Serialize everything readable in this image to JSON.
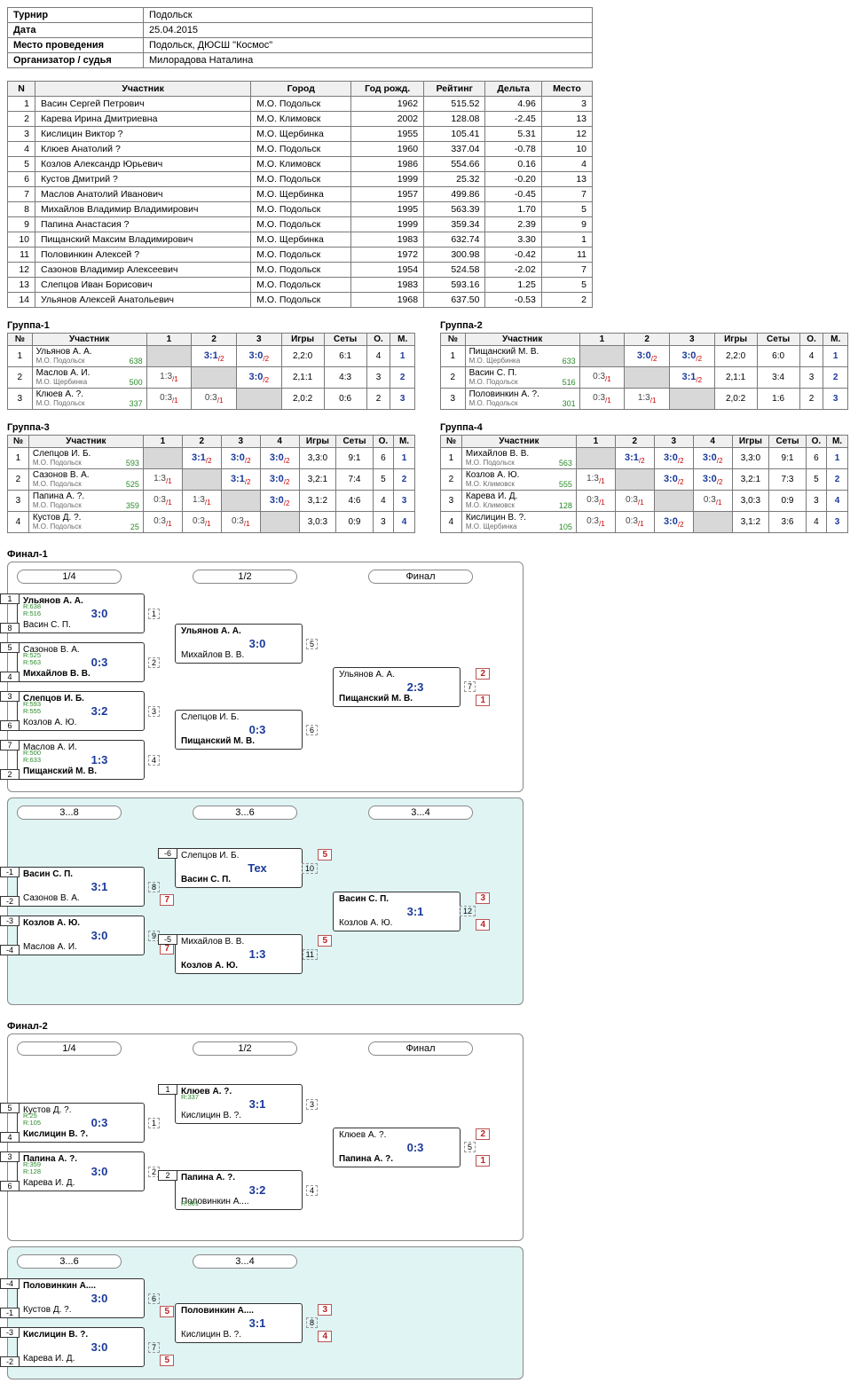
{
  "info": {
    "rows": [
      {
        "k": "Турнир",
        "v": "Подольск"
      },
      {
        "k": "Дата",
        "v": "25.04.2015"
      },
      {
        "k": "Место проведения",
        "v": "Подольск, ДЮСШ \"Космос\""
      },
      {
        "k": "Организатор / судья",
        "v": "Милорадова Наталина"
      }
    ]
  },
  "participants": {
    "headers": [
      "N",
      "Участник",
      "Город",
      "Год рожд.",
      "Рейтинг",
      "Дельта",
      "Место"
    ],
    "rows": [
      [
        1,
        "Васин Сергей Петрович",
        "М.О. Подольск",
        "1962",
        "515.52",
        "4.96",
        "3"
      ],
      [
        2,
        "Карева Ирина Дмитриевна",
        "М.О. Климовск",
        "2002",
        "128.08",
        "-2.45",
        "13"
      ],
      [
        3,
        "Кислицин Виктор ?",
        "М.О. Щербинка",
        "1955",
        "105.41",
        "5.31",
        "12"
      ],
      [
        4,
        "Клюев Анатолий ?",
        "М.О. Подольск",
        "1960",
        "337.04",
        "-0.78",
        "10"
      ],
      [
        5,
        "Козлов Александр Юрьевич",
        "М.О. Климовск",
        "1986",
        "554.66",
        "0.16",
        "4"
      ],
      [
        6,
        "Кустов Дмитрий ?",
        "М.О. Подольск",
        "1999",
        "25.32",
        "-0.20",
        "13"
      ],
      [
        7,
        "Маслов Анатолий Иванович",
        "М.О. Щербинка",
        "1957",
        "499.86",
        "-0.45",
        "7"
      ],
      [
        8,
        "Михайлов Владимир Владимирович",
        "М.О. Подольск",
        "1995",
        "563.39",
        "1.70",
        "5"
      ],
      [
        9,
        "Папина Анастасия ?",
        "М.О. Подольск",
        "1999",
        "359.34",
        "2.39",
        "9"
      ],
      [
        10,
        "Пищанский Максим Владимирович",
        "М.О. Щербинка",
        "1983",
        "632.74",
        "3.30",
        "1"
      ],
      [
        11,
        "Половинкин Алексей ?",
        "М.О. Подольск",
        "1972",
        "300.98",
        "-0.42",
        "11"
      ],
      [
        12,
        "Сазонов Владимир Алексеевич",
        "М.О. Подольск",
        "1954",
        "524.58",
        "-2.02",
        "7"
      ],
      [
        13,
        "Слепцов Иван Борисович",
        "М.О. Подольск",
        "1983",
        "593.16",
        "1.25",
        "5"
      ],
      [
        14,
        "Ульянов Алексей Анатольевич",
        "М.О. Подольск",
        "1968",
        "637.50",
        "-0.53",
        "2"
      ]
    ]
  },
  "groups": [
    {
      "title": "Группа-1",
      "cols": 3,
      "headers": [
        "№",
        "Участник",
        "1",
        "2",
        "3",
        "Игры",
        "Сеты",
        "О.",
        "М."
      ],
      "rows": [
        {
          "n": 1,
          "name": "Ульянов А. А.",
          "club": "М.О. Подольск",
          "rat": "638",
          "cells": [
            "D",
            "W3:1|2",
            "W3:0|2"
          ],
          "games": "2,2:0",
          "sets": "6:1",
          "pts": "4",
          "place": "1"
        },
        {
          "n": 2,
          "name": "Маслов А. И.",
          "club": "М.О. Щербинка",
          "rat": "500",
          "cells": [
            "L1:3|1",
            "D",
            "W3:0|2"
          ],
          "games": "2,1:1",
          "sets": "4:3",
          "pts": "3",
          "place": "2"
        },
        {
          "n": 3,
          "name": "Клюев А. ?.",
          "club": "М.О. Подольск",
          "rat": "337",
          "cells": [
            "L0:3|1",
            "L0:3|1",
            "D"
          ],
          "games": "2,0:2",
          "sets": "0:6",
          "pts": "2",
          "place": "3"
        }
      ]
    },
    {
      "title": "Группа-2",
      "cols": 3,
      "headers": [
        "№",
        "Участник",
        "1",
        "2",
        "3",
        "Игры",
        "Сеты",
        "О.",
        "М."
      ],
      "rows": [
        {
          "n": 1,
          "name": "Пищанский М. В.",
          "club": "М.О. Щербинка",
          "rat": "633",
          "cells": [
            "D",
            "W3:0|2",
            "W3:0|2"
          ],
          "games": "2,2:0",
          "sets": "6:0",
          "pts": "4",
          "place": "1"
        },
        {
          "n": 2,
          "name": "Васин С. П.",
          "club": "М.О. Подольск",
          "rat": "516",
          "cells": [
            "L0:3|1",
            "D",
            "W3:1|2"
          ],
          "games": "2,1:1",
          "sets": "3:4",
          "pts": "3",
          "place": "2"
        },
        {
          "n": 3,
          "name": "Половинкин А. ?.",
          "club": "М.О. Подольск",
          "rat": "301",
          "cells": [
            "L0:3|1",
            "L1:3|1",
            "D"
          ],
          "games": "2,0:2",
          "sets": "1:6",
          "pts": "2",
          "place": "3"
        }
      ]
    },
    {
      "title": "Группа-3",
      "cols": 4,
      "headers": [
        "№",
        "Участник",
        "1",
        "2",
        "3",
        "4",
        "Игры",
        "Сеты",
        "О.",
        "М."
      ],
      "rows": [
        {
          "n": 1,
          "name": "Слепцов И. Б.",
          "club": "М.О. Подольск",
          "rat": "593",
          "cells": [
            "D",
            "W3:1|2",
            "W3:0|2",
            "W3:0|2"
          ],
          "games": "3,3:0",
          "sets": "9:1",
          "pts": "6",
          "place": "1"
        },
        {
          "n": 2,
          "name": "Сазонов В. А.",
          "club": "М.О. Подольск",
          "rat": "525",
          "cells": [
            "L1:3|1",
            "D",
            "W3:1|2",
            "W3:0|2"
          ],
          "games": "3,2:1",
          "sets": "7:4",
          "pts": "5",
          "place": "2"
        },
        {
          "n": 3,
          "name": "Папина А. ?.",
          "club": "М.О. Подольск",
          "rat": "359",
          "cells": [
            "L0:3|1",
            "L1:3|1",
            "D",
            "W3:0|2"
          ],
          "games": "3,1:2",
          "sets": "4:6",
          "pts": "4",
          "place": "3"
        },
        {
          "n": 4,
          "name": "Кустов Д. ?.",
          "club": "М.О. Подольск",
          "rat": "25",
          "cells": [
            "L0:3|1",
            "L0:3|1",
            "L0:3|1",
            "D"
          ],
          "games": "3,0:3",
          "sets": "0:9",
          "pts": "3",
          "place": "4"
        }
      ]
    },
    {
      "title": "Группа-4",
      "cols": 4,
      "headers": [
        "№",
        "Участник",
        "1",
        "2",
        "3",
        "4",
        "Игры",
        "Сеты",
        "О.",
        "М."
      ],
      "rows": [
        {
          "n": 1,
          "name": "Михайлов В. В.",
          "club": "М.О. Подольск",
          "rat": "563",
          "cells": [
            "D",
            "W3:1|2",
            "W3:0|2",
            "W3:0|2"
          ],
          "games": "3,3:0",
          "sets": "9:1",
          "pts": "6",
          "place": "1"
        },
        {
          "n": 2,
          "name": "Козлов А. Ю.",
          "club": "М.О. Климовск",
          "rat": "555",
          "cells": [
            "L1:3|1",
            "D",
            "W3:0|2",
            "W3:0|2"
          ],
          "games": "3,2:1",
          "sets": "7:3",
          "pts": "5",
          "place": "2"
        },
        {
          "n": 3,
          "name": "Карева И. Д.",
          "club": "М.О. Климовск",
          "rat": "128",
          "cells": [
            "L0:3|1",
            "L0:3|1",
            "D",
            "L0:3|1"
          ],
          "games": "3,0:3",
          "sets": "0:9",
          "pts": "3",
          "place": "4"
        },
        {
          "n": 4,
          "name": "Кислицин В. ?.",
          "club": "М.О. Щербинка",
          "rat": "105",
          "cells": [
            "L0:3|1",
            "L0:3|1",
            "W3:0|2",
            "D"
          ],
          "games": "3,1:2",
          "sets": "3:6",
          "pts": "4",
          "place": "3"
        }
      ]
    }
  ],
  "finals": [
    {
      "title": "Финал-1",
      "main": {
        "labels": [
          "1/4",
          "1/2",
          "Финал"
        ],
        "r1": [
          {
            "s1": "1",
            "s2": "8",
            "p1": "Ульянов А. А.",
            "p2": "Васин С. П.",
            "win": 1,
            "sc": "3:0",
            "r": "R:638\nR:516",
            "mn": "1"
          },
          {
            "s1": "5",
            "s2": "4",
            "p1": "Сазонов В. А.",
            "p2": "Михайлов В. В.",
            "win": 2,
            "sc": "0:3",
            "r": "R:525\nR:563",
            "mn": "2"
          },
          {
            "s1": "3",
            "s2": "6",
            "p1": "Слепцов И. Б.",
            "p2": "Козлов А. Ю.",
            "win": 1,
            "sc": "3:2",
            "r": "R:593\nR:555",
            "mn": "3"
          },
          {
            "s1": "7",
            "s2": "2",
            "p1": "Маслов А. И.",
            "p2": "Пищанский М. В.",
            "win": 2,
            "sc": "1:3",
            "r": "R:500\nR:633",
            "mn": "4"
          }
        ],
        "r2": [
          {
            "p1": "Ульянов А. А.",
            "p2": "Михайлов В. В.",
            "win": 1,
            "sc": "3:0",
            "mn": "5"
          },
          {
            "p1": "Слепцов И. Б.",
            "p2": "Пищанский М. В.",
            "win": 2,
            "sc": "0:3",
            "mn": "6"
          }
        ],
        "r3": [
          {
            "p1": "Ульянов А. А.",
            "p2": "Пищанский М. В.",
            "win": 2,
            "sc": "2:3",
            "mn": "7",
            "pl1": "2",
            "pl2": "1"
          }
        ]
      },
      "cons": {
        "labels": [
          "3...8",
          "3...6",
          "3...4"
        ],
        "r1": [
          {
            "s1": "-1",
            "s2": "-2",
            "p1": "Васин С. П.",
            "p2": "Сазонов В. А.",
            "win": 1,
            "sc": "3:1",
            "mn": "8",
            "pl": "7"
          },
          {
            "s1": "-3",
            "s2": "-4",
            "p1": "Козлов А. Ю.",
            "p2": "Маслов А. И.",
            "win": 1,
            "sc": "3:0",
            "mn": "9",
            "pl": "7"
          }
        ],
        "r2": [
          {
            "s1": "-6",
            "p1": "Слепцов И. Б.",
            "p2": "Васин С. П.",
            "win": 2,
            "sc": "Тех",
            "mn": "10",
            "pl1": "5"
          },
          {
            "s1": "-5",
            "p1": "Михайлов В. В.",
            "p2": "Козлов А. Ю.",
            "win": 2,
            "sc": "1:3",
            "mn": "11",
            "pl1": "5"
          }
        ],
        "r3": [
          {
            "p1": "Васин С. П.",
            "p2": "Козлов А. Ю.",
            "win": 1,
            "sc": "3:1",
            "mn": "12",
            "pl1": "3",
            "pl2": "4"
          }
        ]
      }
    },
    {
      "title": "Финал-2",
      "main": {
        "labels": [
          "1/4",
          "1/2",
          "Финал"
        ],
        "r1": [
          {
            "s1": "5",
            "s2": "4",
            "p1": "Кустов Д. ?.",
            "p2": "Кислицин В. ?.",
            "win": 2,
            "sc": "0:3",
            "r": "R:25\nR:105",
            "mn": "1"
          },
          {
            "s1": "3",
            "s2": "6",
            "p1": "Папина А. ?.",
            "p2": "Карева И. Д.",
            "win": 1,
            "sc": "3:0",
            "r": "R:359\nR:128",
            "mn": "2"
          }
        ],
        "r2": [
          {
            "s1": "1",
            "p1": "Клюев А. ?.",
            "p2": "Кислицин В. ?.",
            "win": 1,
            "sc": "3:1",
            "r": "R:337",
            "mn": "3"
          },
          {
            "s1": "2",
            "p1": "Папина А. ?.",
            "p2": "Половинкин А....",
            "win": 1,
            "sc": "3:2",
            "r2": "R:301",
            "mn": "4"
          }
        ],
        "r3": [
          {
            "p1": "Клюев А. ?.",
            "p2": "Папина А. ?.",
            "win": 2,
            "sc": "0:3",
            "mn": "5",
            "pl1": "2",
            "pl2": "1"
          }
        ]
      },
      "cons": {
        "labels": [
          "3...6",
          "3...4"
        ],
        "r1": [
          {
            "s1": "-4",
            "s2": "-1",
            "p1": "Половинкин А....",
            "p2": "Кустов Д. ?.",
            "win": 1,
            "sc": "3:0",
            "mn": "6",
            "pl": "5"
          },
          {
            "s1": "-3",
            "s2": "-2",
            "p1": "Кислицин В. ?.",
            "p2": "Карева И. Д.",
            "win": 1,
            "sc": "3:0",
            "mn": "7",
            "pl": "5"
          }
        ],
        "r2": [
          {
            "p1": "Половинкин А....",
            "p2": "Кислицин В. ?.",
            "win": 1,
            "sc": "3:1",
            "mn": "8",
            "pl1": "3",
            "pl2": "4"
          }
        ]
      }
    }
  ]
}
